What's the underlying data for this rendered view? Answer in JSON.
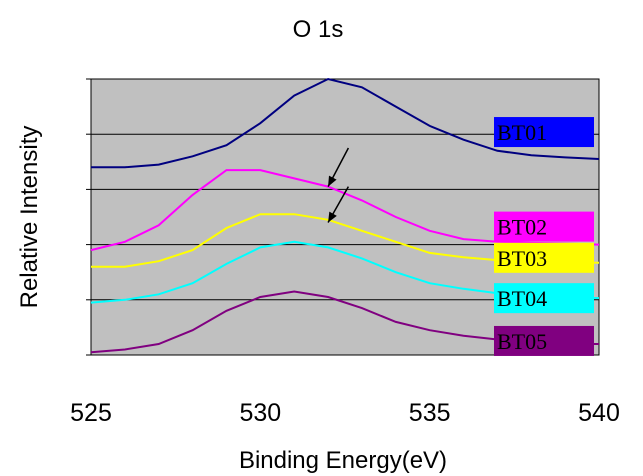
{
  "chart_data": {
    "type": "line",
    "title": "O 1s",
    "xlabel": "Binding Energy(eV)",
    "ylabel": "Relative Intensity",
    "xlim": [
      525,
      540
    ],
    "ylim": [
      0,
      5
    ],
    "xticks": [
      "525",
      "530",
      "535",
      "540"
    ],
    "grid": "horizontal",
    "legend": "labels at right end of each series",
    "x": [
      525,
      526,
      527,
      528,
      529,
      530,
      531,
      532,
      533,
      534,
      535,
      536,
      537,
      538,
      539,
      540
    ],
    "series": [
      {
        "name": "BT01",
        "color": "#000080",
        "label_bg": "#0000ff",
        "values": [
          3.4,
          3.4,
          3.45,
          3.6,
          3.8,
          4.2,
          4.7,
          5.0,
          4.85,
          4.5,
          4.15,
          3.9,
          3.7,
          3.62,
          3.58,
          3.55
        ]
      },
      {
        "name": "BT02",
        "color": "#ff00ff",
        "label_bg": "#ff00ff",
        "values": [
          1.9,
          2.05,
          2.35,
          2.9,
          3.35,
          3.35,
          3.2,
          3.05,
          2.8,
          2.5,
          2.25,
          2.1,
          2.05,
          2.03,
          2.02,
          2.0
        ]
      },
      {
        "name": "BT03",
        "color": "#ffff00",
        "label_bg": "#ffff00",
        "values": [
          1.6,
          1.6,
          1.7,
          1.9,
          2.3,
          2.55,
          2.55,
          2.45,
          2.25,
          2.05,
          1.85,
          1.77,
          1.72,
          1.7,
          1.68,
          1.67
        ]
      },
      {
        "name": "BT04",
        "color": "#00ffff",
        "label_bg": "#00ffff",
        "values": [
          0.95,
          1.0,
          1.1,
          1.3,
          1.65,
          1.95,
          2.05,
          1.95,
          1.75,
          1.5,
          1.3,
          1.2,
          1.12,
          1.08,
          1.05,
          1.03
        ]
      },
      {
        "name": "BT05",
        "color": "#800080",
        "label_bg": "#800080",
        "values": [
          0.05,
          0.1,
          0.2,
          0.45,
          0.8,
          1.05,
          1.15,
          1.05,
          0.85,
          0.6,
          0.45,
          0.35,
          0.28,
          0.22,
          0.2,
          0.2
        ]
      }
    ],
    "annotations": [
      {
        "type": "arrow",
        "from": [
          532.6,
          3.75
        ],
        "to": [
          532.0,
          3.05
        ]
      },
      {
        "type": "arrow",
        "from": [
          532.6,
          3.05
        ],
        "to": [
          532.0,
          2.4
        ]
      }
    ]
  }
}
